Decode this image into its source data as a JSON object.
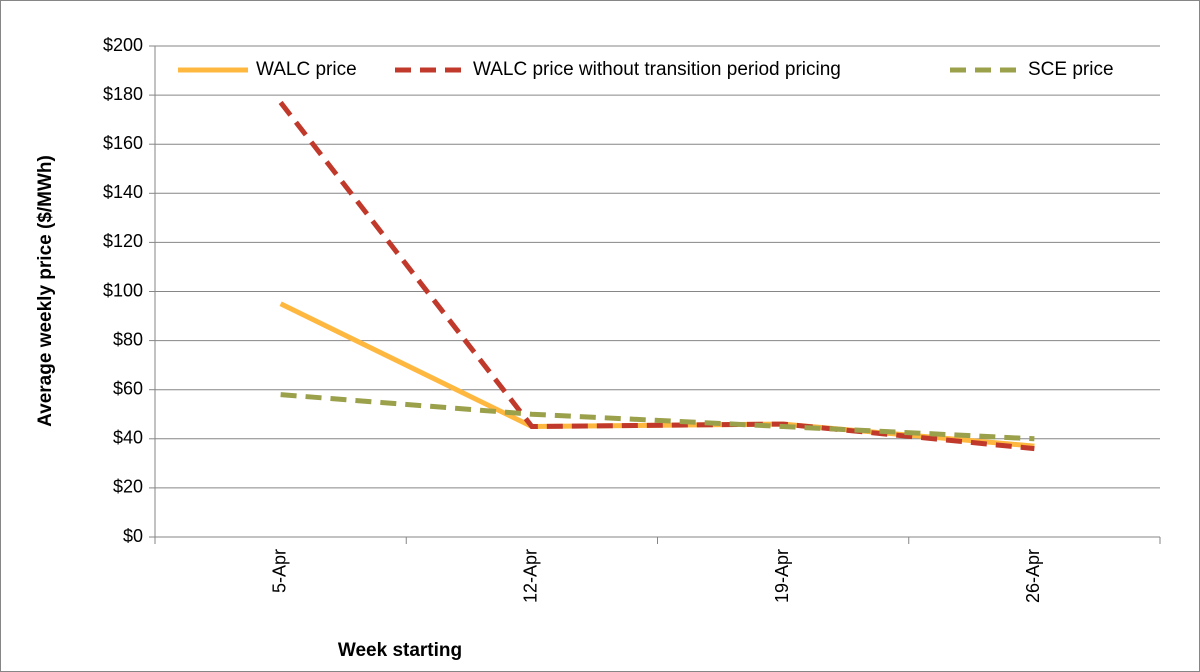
{
  "chart_data": {
    "type": "line",
    "xlabel": "Week starting",
    "ylabel": "Average weekly price ($/MWh)",
    "categories": [
      "5-Apr",
      "12-Apr",
      "19-Apr",
      "26-Apr"
    ],
    "series": [
      {
        "name": "WALC price",
        "color": "#ffb83f",
        "dash": "solid",
        "values": [
          95,
          45,
          46,
          37
        ]
      },
      {
        "name": "WALC price without transition period pricing",
        "color": "#c0392b",
        "dash": "dashed",
        "values": [
          177,
          45,
          46,
          36
        ]
      },
      {
        "name": "SCE price",
        "color": "#9ba04a",
        "dash": "dashed",
        "values": [
          58,
          50,
          45,
          40
        ]
      }
    ],
    "ylim": [
      0,
      200
    ],
    "yticks": [
      {
        "value": 0,
        "label": "$0"
      },
      {
        "value": 20,
        "label": "$20"
      },
      {
        "value": 40,
        "label": "$40"
      },
      {
        "value": 60,
        "label": "$60"
      },
      {
        "value": 80,
        "label": "$80"
      },
      {
        "value": 100,
        "label": "$100"
      },
      {
        "value": 120,
        "label": "$120"
      },
      {
        "value": 140,
        "label": "$140"
      },
      {
        "value": 160,
        "label": "$160"
      },
      {
        "value": 180,
        "label": "$180"
      },
      {
        "value": 200,
        "label": "$200"
      }
    ],
    "grid": true,
    "legend": "top"
  }
}
